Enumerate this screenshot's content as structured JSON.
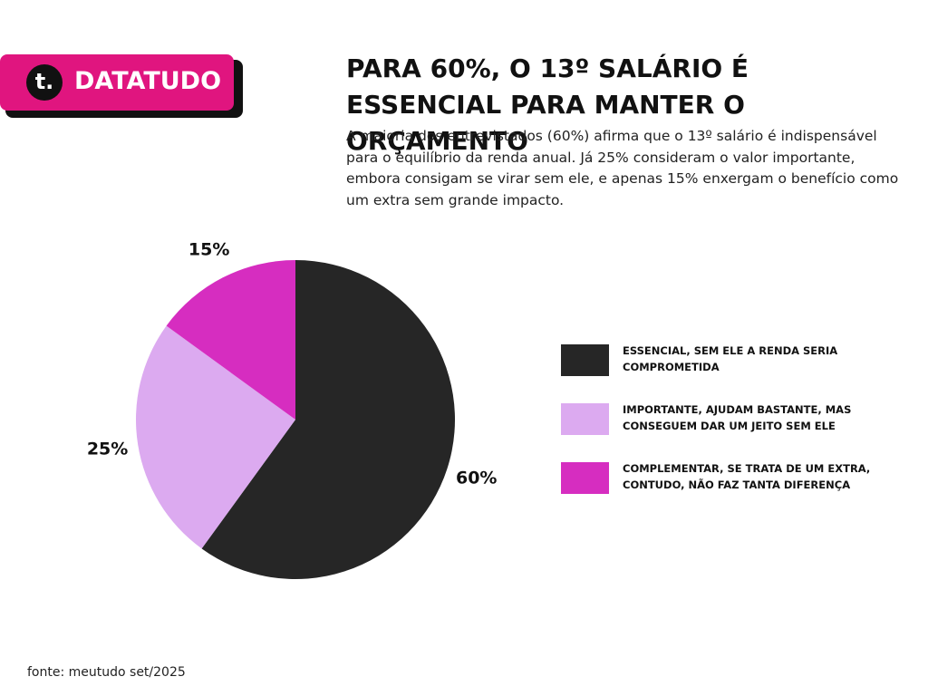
{
  "brand": {
    "icon": "t.",
    "name": "DATATUDO"
  },
  "chart_data": {
    "type": "pie",
    "title": "PARA 60%, O 13º SALÁRIO É ESSENCIAL PARA MANTER O ORÇAMENTO",
    "subtitle": "A maioria dos entrevistados (60%) afirma que o 13º salário é indispensável para o equilíbrio da renda anual. Já 25% consideram o valor importante, embora consigam se virar sem ele, e apenas 15% enxergam o benefício como um extra sem grande impacto.",
    "categories": [
      "ESSENCIAL, SEM ELE A RENDA SERIA COMPROMETIDA",
      "IMPORTANTE, AJUDAM BASTANTE, MAS CONSEGUEM  DAR UM JEITO SEM ELE",
      "COMPLEMENTAR, SE TRATA DE UM EXTRA, CONTUDO, NÃO FAZ TANTA DIFERENÇA"
    ],
    "values": [
      60,
      25,
      15
    ],
    "value_labels": [
      "60%",
      "25%",
      "15%"
    ],
    "colors": [
      "#262626",
      "#dcaaf0",
      "#d62dc0"
    ],
    "source": "fonte: meutudo set/2025"
  }
}
